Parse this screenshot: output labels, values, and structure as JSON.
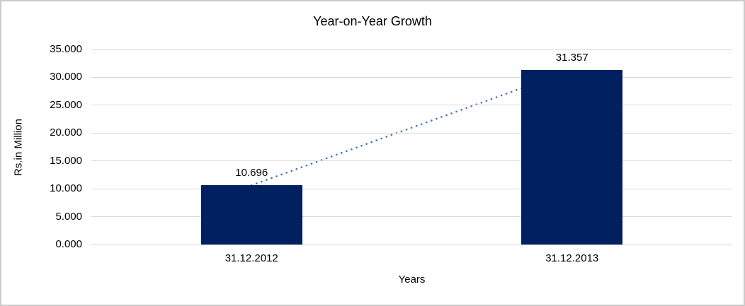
{
  "chart_data": {
    "type": "bar",
    "title": "Year-on-Year Growth",
    "xlabel": "Years",
    "ylabel": "Rs.in Million",
    "categories": [
      "31.12.2012",
      "31.12.2013"
    ],
    "values": [
      10.696,
      31.357
    ],
    "data_labels": [
      "10.696",
      "31.357"
    ],
    "ylim": [
      0,
      35
    ],
    "ytick_step": 5,
    "ytick_labels": [
      "0.000",
      "5.000",
      "10.000",
      "15.000",
      "20.000",
      "25.000",
      "30.000",
      "35.000"
    ],
    "grid": true,
    "legend": "none",
    "bar_color": "#002060",
    "trendline": {
      "style": "dotted",
      "color": "#4472C4"
    },
    "gridline_color": "#d9d9d9",
    "text_color": "#000000",
    "frame_border_color": "#cbcbcb"
  }
}
